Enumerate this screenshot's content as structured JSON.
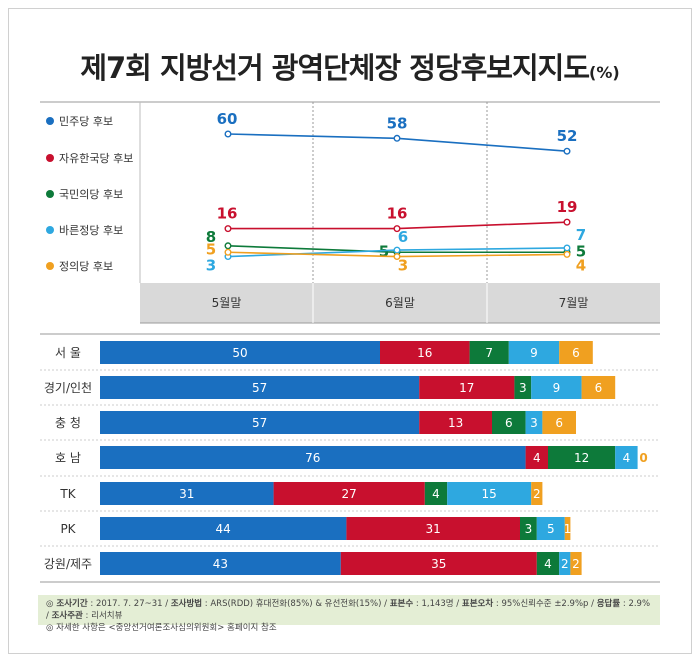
{
  "title": "제7회 지방선거 광역단체장 정당후보지지도",
  "title_unit": "(%)",
  "colors": {
    "minju": "#1a6fc0",
    "jayu": "#c8102e",
    "gukmin": "#0d7a3a",
    "bareun": "#2ea8e0",
    "jeongui": "#f0a020"
  },
  "chart_data": [
    {
      "type": "line",
      "categories": [
        "5월말",
        "6월말",
        "7월말"
      ],
      "series": [
        {
          "name": "민주당 후보",
          "color": "#1a6fc0",
          "values": [
            60,
            58,
            52
          ]
        },
        {
          "name": "자유한국당 후보",
          "color": "#c8102e",
          "values": [
            16,
            16,
            19
          ]
        },
        {
          "name": "국민의당 후보",
          "color": "#0d7a3a",
          "values": [
            8,
            5,
            5
          ]
        },
        {
          "name": "바른정당 후보",
          "color": "#2ea8e0",
          "values": [
            3,
            6,
            7
          ]
        },
        {
          "name": "정의당 후보",
          "color": "#f0a020",
          "values": [
            5,
            3,
            4
          ]
        }
      ]
    },
    {
      "type": "bar",
      "stacked": true,
      "orientation": "horizontal",
      "categories": [
        "서 울",
        "경기/인천",
        "충 청",
        "호 남",
        "TK",
        "PK",
        "강원/제주"
      ],
      "series": [
        {
          "name": "민주당 후보",
          "color": "#1a6fc0",
          "values": [
            50,
            57,
            57,
            76,
            31,
            44,
            43
          ]
        },
        {
          "name": "자유한국당 후보",
          "color": "#c8102e",
          "values": [
            16,
            17,
            13,
            4,
            27,
            31,
            35
          ]
        },
        {
          "name": "국민의당 후보",
          "color": "#0d7a3a",
          "values": [
            7,
            3,
            6,
            12,
            4,
            3,
            4
          ]
        },
        {
          "name": "바른정당 후보",
          "color": "#2ea8e0",
          "values": [
            9,
            9,
            3,
            4,
            15,
            5,
            2
          ]
        },
        {
          "name": "정의당 후보",
          "color": "#f0a020",
          "values": [
            6,
            6,
            6,
            0,
            2,
            1,
            2
          ]
        }
      ]
    }
  ],
  "footer": {
    "line1_parts": [
      {
        "label": "◎ 조사기간",
        "value": " : 2017. 7. 27~31 / "
      },
      {
        "label": "조사방법",
        "value": " : ARS(RDD) 휴대전화(85%) & 유선전화(15%) / "
      },
      {
        "label": "표본수",
        "value": " : 1,143명 / "
      },
      {
        "label": "표본오차",
        "value": " : 95%신뢰수준 ±2.9%p / "
      },
      {
        "label": "응답률",
        "value": " : 2.9% / "
      },
      {
        "label": "조사주관",
        "value": " : 리서치뷰"
      }
    ],
    "line2": "◎ 자세한 사항은 <중앙선거여론조사심의위원회> 홈페이지 참조"
  }
}
